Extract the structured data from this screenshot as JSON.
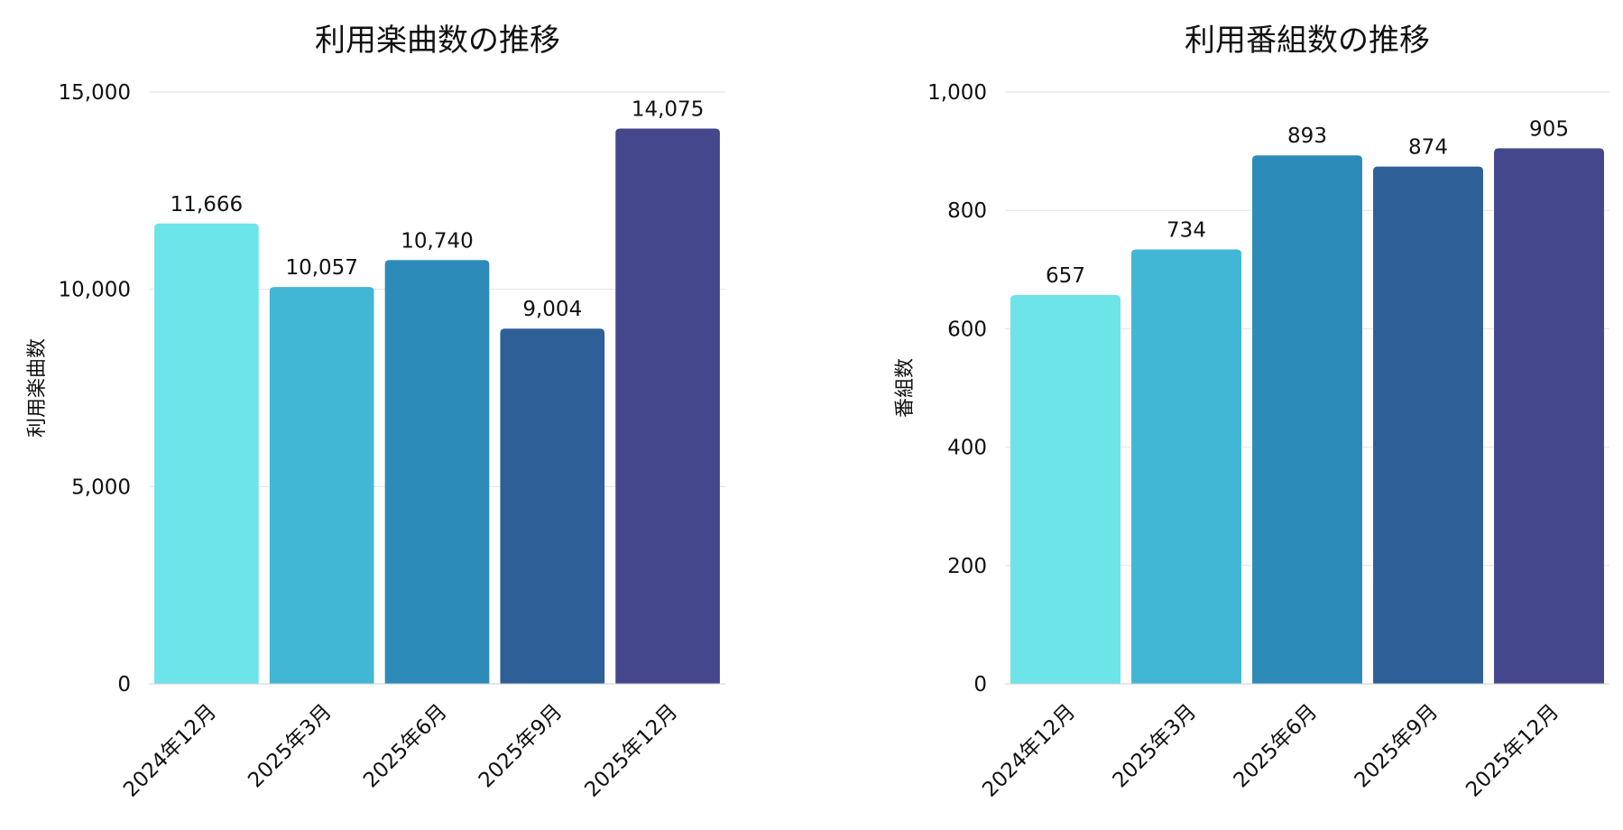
{
  "chart_data": [
    {
      "type": "bar",
      "title": "利用楽曲数の推移",
      "xlabel": "",
      "ylabel": "利用楽曲数",
      "categories": [
        "2024年12月",
        "2025年3月",
        "2025年6月",
        "2025年9月",
        "2025年12月"
      ],
      "values": [
        11666,
        10057,
        10740,
        9004,
        14075
      ],
      "value_labels": [
        "11,666",
        "10,057",
        "10,740",
        "9,004",
        "14,075"
      ],
      "ylim": [
        0,
        15000
      ],
      "yticks": [
        0,
        5000,
        10000,
        15000
      ],
      "ytick_labels": [
        "0",
        "5,000",
        "10,000",
        "15,000"
      ],
      "grid": true,
      "colors": [
        "#6ce4e8",
        "#42b6d5",
        "#2d8bb9",
        "#2e6097",
        "#45478c"
      ]
    },
    {
      "type": "bar",
      "title": "利用番組数の推移",
      "xlabel": "",
      "ylabel": "番組数",
      "categories": [
        "2024年12月",
        "2025年3月",
        "2025年6月",
        "2025年9月",
        "2025年12月"
      ],
      "values": [
        657,
        734,
        893,
        874,
        905
      ],
      "value_labels": [
        "657",
        "734",
        "893",
        "874",
        "905"
      ],
      "ylim": [
        0,
        1000
      ],
      "yticks": [
        0,
        200,
        400,
        600,
        800,
        1000
      ],
      "ytick_labels": [
        "0",
        "200",
        "400",
        "600",
        "800",
        "1,000"
      ],
      "grid": true,
      "colors": [
        "#6ce4e8",
        "#42b6d5",
        "#2d8bb9",
        "#2e6097",
        "#45478c"
      ]
    }
  ]
}
